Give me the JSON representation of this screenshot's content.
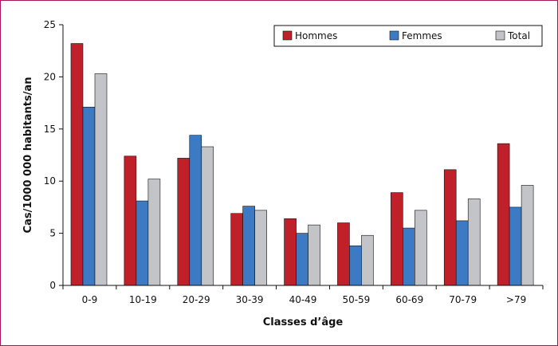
{
  "chart_data": {
    "type": "bar",
    "title": "",
    "xlabel": "Classes d’âge",
    "ylabel": "Cas/1000 000 habitants/an",
    "categories": [
      "0-9",
      "10-19",
      "20-29",
      "30-39",
      "40-49",
      "50-59",
      "60-69",
      "70-79",
      ">79"
    ],
    "ylim": [
      0,
      25
    ],
    "yticks": [
      "0",
      "5",
      "10",
      "15",
      "20",
      "25"
    ],
    "grid": false,
    "legend_position": "top-right",
    "series": [
      {
        "name": "Hommes",
        "color": "#c0202a",
        "values": [
          23.2,
          12.4,
          12.2,
          6.9,
          6.4,
          6.0,
          8.9,
          11.1,
          13.6
        ]
      },
      {
        "name": "Femmes",
        "color": "#3c7bc4",
        "values": [
          17.1,
          8.1,
          14.4,
          7.6,
          5.0,
          3.8,
          5.5,
          6.2,
          7.5
        ]
      },
      {
        "name": "Total",
        "color": "#c2c4c8",
        "values": [
          20.3,
          10.2,
          13.3,
          7.2,
          5.8,
          4.8,
          7.2,
          8.3,
          9.6
        ]
      }
    ]
  },
  "colors": {
    "frame_border": "#a2185b",
    "axis": "#111111"
  }
}
